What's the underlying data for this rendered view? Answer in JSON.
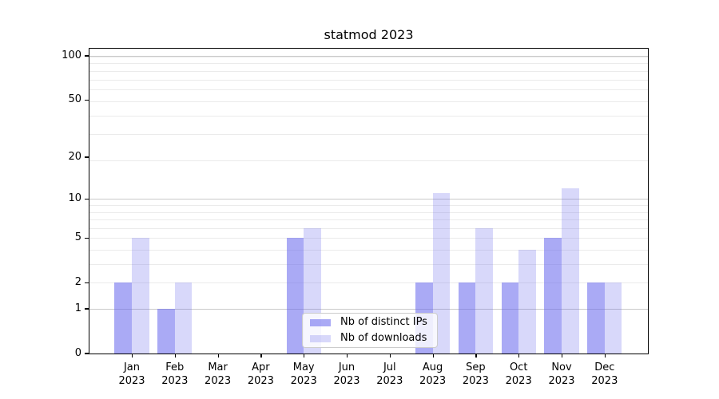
{
  "colors": {
    "bar_base": "#6464ed",
    "ips_bar": "rgba(100,100,237,0.55)",
    "downloads_bar": "rgba(100,100,237,0.25)",
    "major_grid": "#c9c9c9",
    "minor_grid": "#ebebeb",
    "axis": "#000000",
    "background": "#ffffff"
  },
  "chart_data": {
    "type": "bar",
    "title": "statmod 2023",
    "categories": [
      "Jan",
      "Feb",
      "Mar",
      "Apr",
      "May",
      "Jun",
      "Jul",
      "Aug",
      "Sep",
      "Oct",
      "Nov",
      "Dec"
    ],
    "x_year": "2023",
    "series": [
      {
        "name": "Nb of distinct IPs",
        "values": [
          2,
          1,
          0,
          0,
          5,
          0,
          0,
          2,
          2,
          2,
          5,
          2
        ]
      },
      {
        "name": "Nb of downloads",
        "values": [
          5,
          2,
          0,
          0,
          6,
          0,
          0,
          11,
          6,
          4,
          12,
          2
        ]
      }
    ],
    "y_scale": "log10(1+y)",
    "y_ticks": [
      0,
      1,
      2,
      5,
      10,
      20,
      50,
      100
    ],
    "y_major_gridlines": [
      1,
      10,
      100
    ],
    "y_minor_gridline_units": [
      2,
      3,
      4,
      5,
      6,
      7,
      8,
      9,
      10,
      20,
      30,
      40,
      50,
      60,
      70,
      80,
      90,
      100
    ],
    "ylim": [
      0,
      112
    ],
    "xlabel": "",
    "ylabel": "",
    "grid": true,
    "legend_position": "lower center"
  }
}
